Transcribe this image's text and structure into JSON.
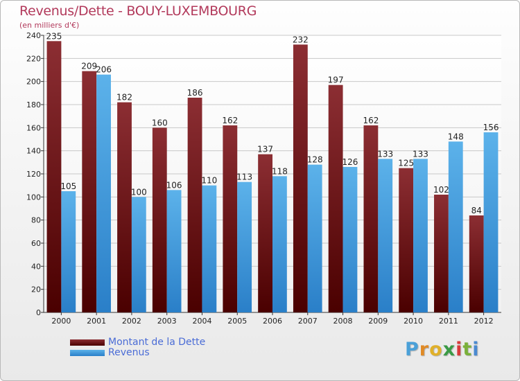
{
  "header": {
    "title": "Revenus/Dette - BOUY-LUXEMBOURG",
    "subtitle": "(en milliers d'€)"
  },
  "logo": {
    "letters": [
      "P",
      "r",
      "o",
      "x",
      "i",
      "t",
      "i"
    ],
    "colors": [
      "#4aa0d8",
      "#e08a26",
      "#e0b02a",
      "#3a9a45",
      "#d83a3a",
      "#7ab03a",
      "#4a8ad0"
    ]
  },
  "colors": {
    "dette_top": "#8c2e33",
    "dette_bottom": "#4a0000",
    "revenus_top": "#5cb2ea",
    "revenus_bottom": "#2a7fc8"
  },
  "chart_data": {
    "type": "bar",
    "title": "Revenus/Dette - BOUY-LUXEMBOURG",
    "subtitle": "(en milliers d'€)",
    "categories": [
      "2000",
      "2001",
      "2002",
      "2003",
      "2004",
      "2005",
      "2006",
      "2007",
      "2008",
      "2009",
      "2010",
      "2011",
      "2012"
    ],
    "series": [
      {
        "name": "Montant de la Dette",
        "values": [
          235,
          209,
          182,
          160,
          186,
          162,
          137,
          232,
          197,
          162,
          125,
          102,
          84
        ]
      },
      {
        "name": "Revenus",
        "values": [
          105,
          206,
          100,
          106,
          110,
          113,
          118,
          128,
          126,
          133,
          133,
          148,
          156
        ]
      }
    ],
    "ylim": [
      0,
      240
    ],
    "yticks": [
      0,
      20,
      40,
      60,
      80,
      100,
      120,
      140,
      160,
      180,
      200,
      220,
      240
    ],
    "grid": true,
    "legend_position": "bottom-left"
  }
}
